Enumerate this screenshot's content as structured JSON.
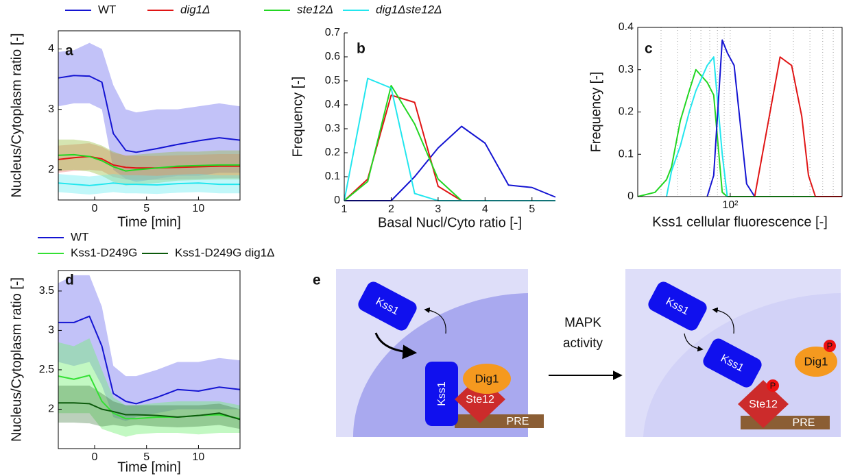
{
  "chart_data": [
    {
      "type": "line",
      "label": "a",
      "xlabel": "Time [min]",
      "ylabel": "Nucleus/Cytoplasm ratio [-]",
      "box": true,
      "legend": "top",
      "x": [
        -3.5,
        -2,
        -0.5,
        0.7,
        1.8,
        3,
        4,
        6,
        8,
        10,
        12,
        14
      ],
      "xlim": [
        -3.5,
        14
      ],
      "xticks": [
        0,
        5,
        10
      ],
      "ylim": [
        1.5,
        4.3
      ],
      "yticks": [
        2,
        3,
        4
      ],
      "series": [
        {
          "name": "WT",
          "color": "#1414d2",
          "band": "rgba(120,120,240,0.45)",
          "values": [
            3.52,
            3.56,
            3.55,
            3.45,
            2.6,
            2.32,
            2.29,
            2.35,
            2.42,
            2.48,
            2.53,
            2.49
          ],
          "upper": [
            3.95,
            3.98,
            4.1,
            4.0,
            3.4,
            3.0,
            2.95,
            3.0,
            3.0,
            3.05,
            3.1,
            3.05
          ],
          "lower": [
            3.05,
            3.1,
            3.1,
            3.0,
            2.0,
            1.85,
            1.8,
            1.85,
            1.9,
            1.9,
            1.95,
            1.95
          ]
        },
        {
          "name": "dig1Δ",
          "italic": true,
          "color": "#e01414",
          "band": "rgba(240,120,120,0.4)",
          "values": [
            2.17,
            2.2,
            2.22,
            2.18,
            2.08,
            2.04,
            2.03,
            2.03,
            2.04,
            2.05,
            2.06,
            2.06
          ],
          "upper": [
            2.4,
            2.42,
            2.44,
            2.38,
            2.28,
            2.24,
            2.23,
            2.23,
            2.24,
            2.25,
            2.26,
            2.26
          ],
          "lower": [
            1.95,
            1.98,
            2.0,
            1.98,
            1.88,
            1.84,
            1.83,
            1.83,
            1.84,
            1.85,
            1.86,
            1.86
          ]
        },
        {
          "name": "ste12Δ",
          "italic": true,
          "color": "#22d622",
          "band": "rgba(150,190,60,0.4)",
          "values": [
            2.24,
            2.25,
            2.22,
            2.15,
            2.05,
            1.98,
            2.0,
            2.03,
            2.06,
            2.07,
            2.08,
            2.08
          ],
          "upper": [
            2.5,
            2.5,
            2.47,
            2.4,
            2.3,
            2.23,
            2.25,
            2.28,
            2.3,
            2.3,
            2.32,
            2.32
          ],
          "lower": [
            1.98,
            2.0,
            1.97,
            1.9,
            1.8,
            1.74,
            1.76,
            1.78,
            1.82,
            1.83,
            1.84,
            1.84
          ]
        },
        {
          "name": "dig1Δste12Δ",
          "italic": true,
          "color": "#22e6ee",
          "band": "rgba(100,235,240,0.4)",
          "values": [
            1.78,
            1.76,
            1.74,
            1.76,
            1.78,
            1.76,
            1.76,
            1.75,
            1.77,
            1.78,
            1.76,
            1.76
          ],
          "upper": [
            1.93,
            1.91,
            1.89,
            1.91,
            1.93,
            1.91,
            1.91,
            1.9,
            1.92,
            1.93,
            1.91,
            1.91
          ],
          "lower": [
            1.63,
            1.61,
            1.59,
            1.61,
            1.63,
            1.61,
            1.61,
            1.6,
            1.62,
            1.63,
            1.61,
            1.61
          ]
        }
      ]
    },
    {
      "type": "line",
      "label": "b",
      "xlabel": "Basal Nucl/Cyto ratio [-]",
      "ylabel": "Frequency [-]",
      "box": false,
      "x": [
        1,
        1.5,
        2,
        2.5,
        3,
        3.5,
        4,
        4.5,
        5,
        5.5
      ],
      "xlim": [
        1,
        5.5
      ],
      "xticks": [
        1,
        2,
        3,
        4,
        5
      ],
      "ylim": [
        0,
        0.7
      ],
      "yticks": [
        0,
        0.1,
        0.2,
        0.3,
        0.4,
        0.5,
        0.6,
        0.7
      ],
      "series": [
        {
          "color": "#1414d2",
          "values": [
            0,
            0,
            0,
            0.1,
            0.22,
            0.31,
            0.24,
            0.065,
            0.055,
            0.015
          ]
        },
        {
          "color": "#e01414",
          "values": [
            0,
            0.09,
            0.44,
            0.41,
            0.06,
            0,
            0,
            0,
            0,
            0
          ]
        },
        {
          "color": "#22d622",
          "values": [
            0,
            0.08,
            0.48,
            0.32,
            0.09,
            0,
            0,
            0,
            0,
            0
          ]
        },
        {
          "color": "#22e6ee",
          "values": [
            0,
            0.51,
            0.47,
            0.03,
            0,
            0,
            0,
            0,
            0,
            0
          ]
        }
      ]
    },
    {
      "type": "line",
      "label": "c",
      "xlabel": "Kss1 cellular fluorescence [-]",
      "ylabel": "Frequency [-]",
      "box": true,
      "xscale": "log",
      "x": [
        20,
        27,
        33,
        36,
        42,
        49,
        55,
        67,
        75,
        87,
        95,
        107,
        133,
        153,
        200,
        238,
        291,
        347,
        390,
        440,
        700
      ],
      "xlim": [
        20,
        700
      ],
      "xticks": [
        {
          "value": 100,
          "label": "10²"
        }
      ],
      "xgrid": [
        30,
        40,
        50,
        60,
        70,
        80,
        90,
        100,
        200,
        300,
        400,
        500,
        600
      ],
      "ylim": [
        0,
        0.4
      ],
      "yticks": [
        0,
        0.1,
        0.2,
        0.3,
        0.4
      ],
      "series": [
        {
          "color": "#22d622",
          "values": [
            0,
            0.01,
            0.04,
            0.07,
            0.18,
            0.25,
            0.3,
            0.27,
            0.24,
            0.01,
            0,
            0,
            0,
            0,
            0,
            0,
            0,
            0,
            0,
            0,
            0
          ]
        },
        {
          "color": "#22e6ee",
          "values": [
            null,
            null,
            0,
            0.06,
            0.12,
            0.2,
            0.25,
            0.31,
            0.33,
            0.1,
            0,
            null,
            null,
            null,
            null,
            null,
            null,
            null,
            null,
            null,
            null
          ]
        },
        {
          "color": "#1414d2",
          "values": [
            null,
            null,
            null,
            null,
            null,
            null,
            null,
            0,
            0.05,
            0.37,
            0.34,
            0.31,
            0.03,
            0,
            null,
            null,
            null,
            null,
            null,
            null,
            null
          ]
        },
        {
          "color": "#e01414",
          "values": [
            null,
            null,
            null,
            null,
            null,
            null,
            null,
            null,
            null,
            null,
            null,
            null,
            null,
            0,
            0.2,
            0.33,
            0.31,
            0.19,
            0.05,
            0,
            0
          ]
        }
      ]
    },
    {
      "type": "line",
      "label": "d",
      "xlabel": "Time [min]",
      "ylabel": "Nucleus/Cytoplasm ratio [-]",
      "box": true,
      "legend": "top",
      "x": [
        -3.5,
        -2,
        -0.5,
        0.7,
        1.8,
        3,
        4,
        6,
        8,
        10,
        12,
        14
      ],
      "xlim": [
        -3.5,
        14
      ],
      "xticks": [
        0,
        5,
        10
      ],
      "ylim": [
        1.5,
        3.76
      ],
      "yticks": [
        2,
        2.5,
        3,
        3.5
      ],
      "series": [
        {
          "name": "WT",
          "color": "#1414d2",
          "band": "rgba(120,120,240,0.45)",
          "values": [
            3.1,
            3.1,
            3.18,
            2.8,
            2.2,
            2.1,
            2.07,
            2.15,
            2.25,
            2.23,
            2.28,
            2.25
          ],
          "upper": [
            3.6,
            3.7,
            3.7,
            3.3,
            2.55,
            2.42,
            2.42,
            2.5,
            2.6,
            2.6,
            2.65,
            2.62
          ],
          "lower": [
            2.6,
            2.55,
            2.6,
            2.3,
            1.9,
            1.85,
            1.9,
            1.95,
            2.0,
            2.0,
            2.0,
            2.0
          ]
        },
        {
          "name": "Kss1-D249G",
          "color": "#33e033",
          "band": "rgba(120,240,120,0.45)",
          "values": [
            2.42,
            2.38,
            2.43,
            2.1,
            1.95,
            1.88,
            1.88,
            1.9,
            1.9,
            1.92,
            1.93,
            1.88
          ],
          "upper": [
            2.85,
            2.8,
            2.9,
            2.5,
            2.15,
            2.05,
            2.05,
            2.08,
            2.1,
            2.1,
            2.1,
            2.05
          ],
          "lower": [
            1.95,
            1.95,
            1.95,
            1.75,
            1.7,
            1.65,
            1.68,
            1.7,
            1.7,
            1.68,
            1.7,
            1.7
          ]
        },
        {
          "name": "Kss1-D249G dig1Δ",
          "color": "#0b5a0b",
          "band": "rgba(60,120,60,0.35)",
          "values": [
            2.08,
            2.08,
            2.07,
            2.0,
            1.97,
            1.93,
            1.93,
            1.92,
            1.9,
            1.92,
            1.95,
            1.87
          ],
          "upper": [
            2.3,
            2.3,
            2.3,
            2.2,
            2.1,
            2.05,
            2.05,
            2.05,
            2.05,
            2.05,
            2.07,
            2.0
          ],
          "lower": [
            1.83,
            1.83,
            1.82,
            1.78,
            1.8,
            1.78,
            1.8,
            1.78,
            1.77,
            1.78,
            1.8,
            1.75
          ]
        }
      ]
    }
  ],
  "diagram": {
    "label": "e",
    "left": {
      "kss1_free": "Kss1",
      "kss1_bound": "Kss1",
      "dig1": "Dig1",
      "ste12": "Ste12",
      "pre": "PRE"
    },
    "arrow_label": [
      "MAPK",
      "activity"
    ],
    "right": {
      "kss1_free": "Kss1",
      "kss1_moving": "Kss1",
      "dig1": "Dig1",
      "dig1_phospho": "P",
      "ste12": "Ste12",
      "ste12_phospho": "P",
      "pre": "PRE"
    }
  }
}
